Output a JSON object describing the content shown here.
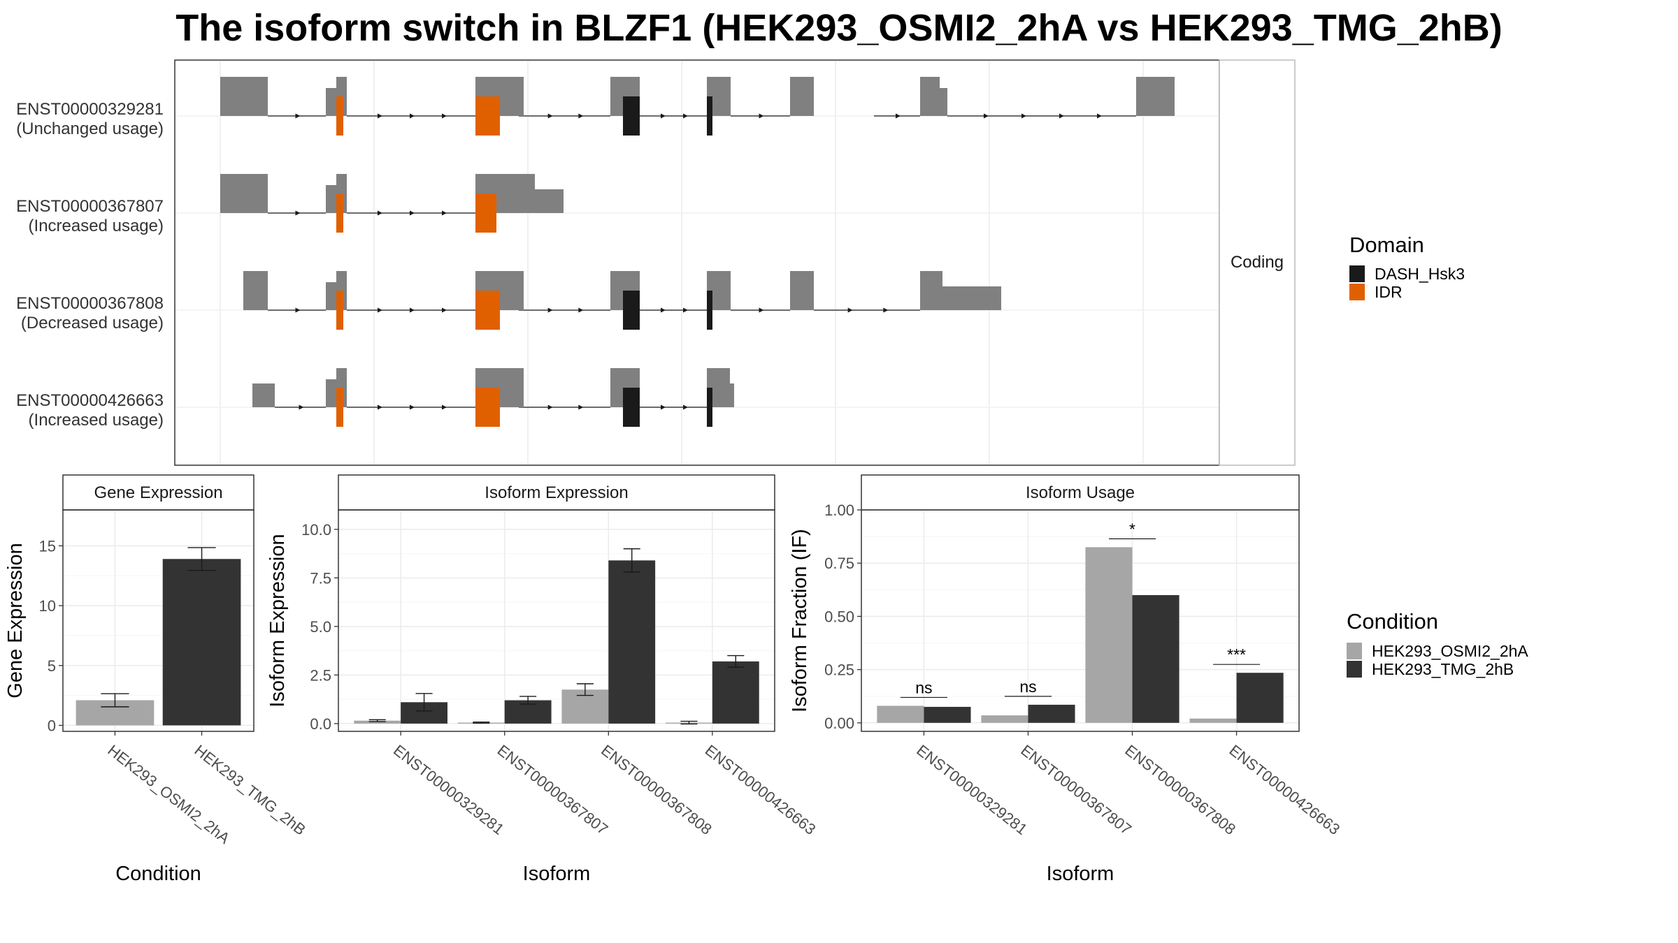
{
  "title": "The isoform switch in BLZF1 (HEK293_OSMI2_2hA vs HEK293_TMG_2hB)",
  "colors": {
    "exon": "#808080",
    "DASH_Hsk3": "#1a1a1a",
    "IDR": "#e06000",
    "cond1": "#a6a6a6",
    "cond2": "#333333"
  },
  "structure": {
    "strip_label": "Coding",
    "isoforms": [
      {
        "id": "ENST00000329281",
        "label": "(Unchanged usage)"
      },
      {
        "id": "ENST00000367807",
        "label": "(Increased usage)"
      },
      {
        "id": "ENST00000367808",
        "label": "(Decreased usage)"
      },
      {
        "id": "ENST00000426663",
        "label": "(Increased usage)"
      }
    ],
    "domain_legend": {
      "title": "Domain",
      "items": [
        {
          "name": "DASH_Hsk3",
          "color": "#1a1a1a"
        },
        {
          "name": "IDR",
          "color": "#e06000"
        }
      ]
    }
  },
  "condition_legend": {
    "title": "Condition",
    "items": [
      {
        "name": "HEK293_OSMI2_2hA",
        "color": "#a6a6a6"
      },
      {
        "name": "HEK293_TMG_2hB",
        "color": "#333333"
      }
    ]
  },
  "chart_data": [
    {
      "type": "bar",
      "title": "Gene Expression",
      "xlabel": "Condition",
      "ylabel": "Gene Expression",
      "ylim": [
        -0.5,
        18
      ],
      "yticks": [
        0,
        5,
        10,
        15
      ],
      "categories": [
        "HEK293_OSMI2_2hA",
        "HEK293_TMG_2hB"
      ],
      "values": [
        2.1,
        13.9
      ],
      "errors": [
        0.55,
        0.95
      ],
      "grid": true
    },
    {
      "type": "bar",
      "title": "Isoform Expression",
      "xlabel": "Isoform",
      "ylabel": "Isoform Expression",
      "ylim": [
        -0.4,
        11
      ],
      "yticks": [
        0.0,
        2.5,
        5.0,
        7.5,
        10.0
      ],
      "tick_format": "1dp",
      "categories": [
        "ENST00000329281",
        "ENST00000367807",
        "ENST00000367808",
        "ENST00000426663"
      ],
      "series": [
        {
          "name": "HEK293_OSMI2_2hA",
          "values": [
            0.15,
            0.05,
            1.75,
            0.05
          ],
          "errors": [
            0.05,
            0.03,
            0.3,
            0.07
          ]
        },
        {
          "name": "HEK293_TMG_2hB",
          "values": [
            1.1,
            1.2,
            8.4,
            3.2
          ],
          "errors": [
            0.45,
            0.2,
            0.6,
            0.3
          ]
        }
      ],
      "grid": true
    },
    {
      "type": "bar",
      "title": "Isoform Usage",
      "xlabel": "Isoform",
      "ylabel": "Isoform Fraction (IF)",
      "ylim": [
        -0.04,
        1.0
      ],
      "yticks": [
        0.0,
        0.25,
        0.5,
        0.75,
        1.0
      ],
      "tick_format": "2dp",
      "categories": [
        "ENST00000329281",
        "ENST00000367807",
        "ENST00000367808",
        "ENST00000426663"
      ],
      "series": [
        {
          "name": "HEK293_OSMI2_2hA",
          "values": [
            0.08,
            0.035,
            0.825,
            0.02
          ]
        },
        {
          "name": "HEK293_TMG_2hB",
          "values": [
            0.075,
            0.085,
            0.6,
            0.235
          ]
        }
      ],
      "significance": [
        "ns",
        "ns",
        "*",
        "***"
      ],
      "grid": true
    }
  ]
}
